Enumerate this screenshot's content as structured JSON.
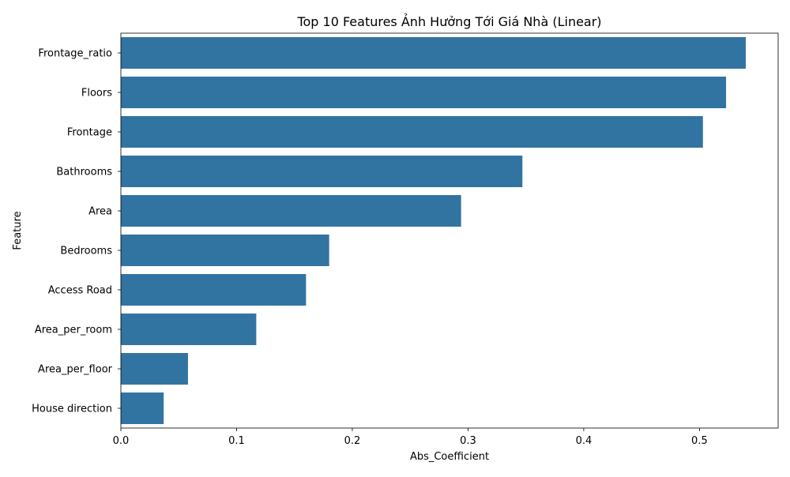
{
  "chart_data": {
    "type": "bar",
    "orientation": "horizontal",
    "title": "Top 10 Features Ảnh Hưởng Tới Giá Nhà (Linear)",
    "xlabel": "Abs_Coefficient",
    "ylabel": "Feature",
    "categories": [
      "Frontage_ratio",
      "Floors",
      "Frontage",
      "Bathrooms",
      "Area",
      "Bedrooms",
      "Access Road",
      "Area_per_room",
      "Area_per_floor",
      "House direction"
    ],
    "values": [
      0.54,
      0.523,
      0.503,
      0.347,
      0.294,
      0.18,
      0.16,
      0.117,
      0.058,
      0.037
    ],
    "xlim": [
      0,
      0.568
    ],
    "xticks": [
      "0.0",
      "0.1",
      "0.2",
      "0.3",
      "0.4",
      "0.5"
    ],
    "xtick_values": [
      0,
      0.1,
      0.2,
      0.3,
      0.4,
      0.5
    ],
    "bar_color": "#3274a1",
    "grid": false
  }
}
